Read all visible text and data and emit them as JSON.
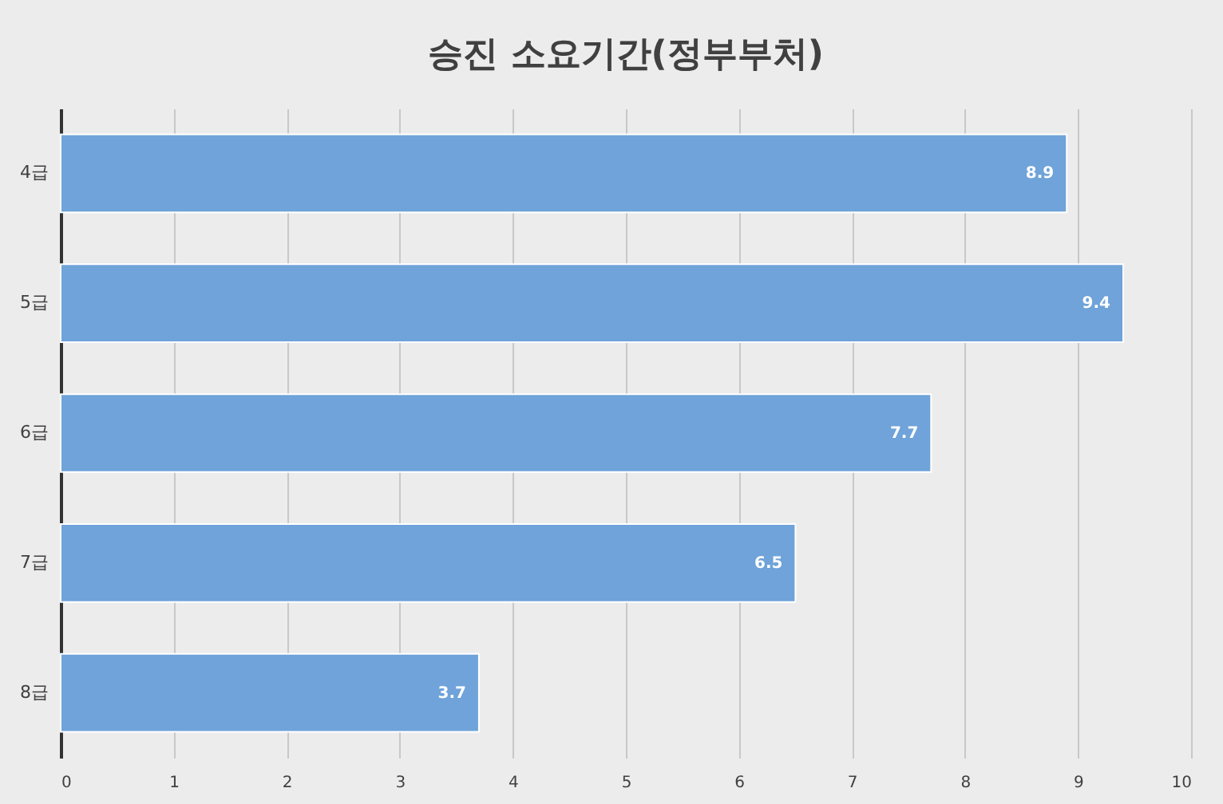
{
  "chart_data": {
    "type": "bar",
    "orientation": "horizontal",
    "title": "승진 소요기간(정부부처)",
    "categories": [
      "4급",
      "5급",
      "6급",
      "7급",
      "8급"
    ],
    "values": [
      8.9,
      9.4,
      7.7,
      6.5,
      3.7
    ],
    "color": "#6fa3d9",
    "xlim": [
      0,
      10
    ],
    "xticks": [
      0,
      1,
      2,
      3,
      4,
      5,
      6,
      7,
      8,
      9,
      10
    ],
    "grid": "x",
    "data_labels": true
  }
}
